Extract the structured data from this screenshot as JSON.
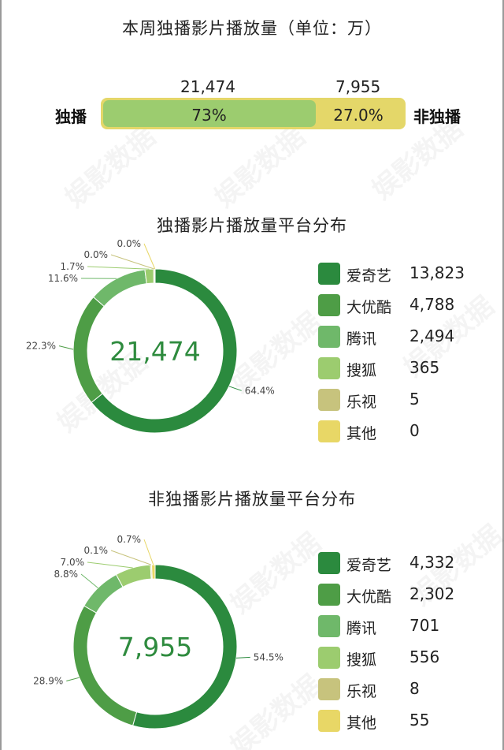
{
  "title": "本周独播影片播放量（单位：万）",
  "exclusive_bar": {
    "left_label": "独播",
    "right_label": "非独播",
    "left_value": "21,474",
    "right_value": "7,955",
    "left_pct": "73%",
    "right_pct": "27.0%",
    "fill_fraction": 0.73,
    "fill_color": "#9ccc6f",
    "track_color": "#e4d769"
  },
  "watermark_text": "娱影数据",
  "colors": {
    "iqiyi": "#2b8a3e",
    "youku": "#4e9d46",
    "tencent": "#6fb86a",
    "sohu": "#9ccc6f",
    "letv": "#c7c37d",
    "other": "#e8d766"
  },
  "chart_data": [
    {
      "type": "pie",
      "title": "独播影片播放量平台分布",
      "center_label": "21,474",
      "categories": [
        "爱奇艺",
        "大优酷",
        "腾讯",
        "搜狐",
        "乐视",
        "其他"
      ],
      "values": [
        13823,
        4788,
        2494,
        365,
        5,
        0
      ],
      "value_labels": [
        "13,823",
        "4,788",
        "2,494",
        "365",
        "5",
        "0"
      ],
      "percent_labels": [
        "64.4%",
        "22.3%",
        "11.6%",
        "1.7%",
        "0.0%",
        "0.0%"
      ],
      "legend_position": "right"
    },
    {
      "type": "pie",
      "title": "非独播影片播放量平台分布",
      "center_label": "7,955",
      "categories": [
        "爱奇艺",
        "大优酷",
        "腾讯",
        "搜狐",
        "乐视",
        "其他"
      ],
      "values": [
        4332,
        2302,
        701,
        556,
        8,
        55
      ],
      "value_labels": [
        "4,332",
        "2,302",
        "701",
        "556",
        "8",
        "55"
      ],
      "percent_labels": [
        "54.5%",
        "28.9%",
        "8.8%",
        "7.0%",
        "0.1%",
        "0.7%"
      ],
      "legend_position": "right"
    }
  ]
}
